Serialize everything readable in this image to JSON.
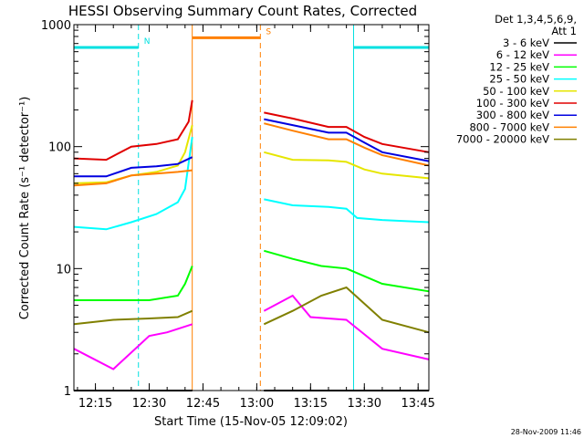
{
  "chart_data": {
    "type": "line",
    "title": "HESSI Observing Summary Count Rates, Corrected",
    "xlabel": "Start Time (15-Nov-05 12:09:02)",
    "ylabel": "Corrected Count Rate (s⁻¹ detector⁻¹)",
    "yscale": "log",
    "ylim": [
      1,
      1000
    ],
    "xlim": [
      "12:09",
      "13:48"
    ],
    "x_ticks": [
      "12:15",
      "12:30",
      "12:45",
      "13:00",
      "13:15",
      "13:30",
      "13:45"
    ],
    "y_ticks": [
      "1",
      "10",
      "100",
      "1000"
    ],
    "grid": false,
    "legend_placement": "right",
    "legend_header": [
      "Det 1,3,4,5,6,9,",
      "Att 1"
    ],
    "timestamp": "28-Nov-2009 11:46",
    "gaps": [
      [
        "12:42",
        "13:02"
      ]
    ],
    "annotations": [
      {
        "label": "N",
        "type": "night",
        "color": "#00e0e0",
        "periods": [
          [
            "12:09",
            "12:27"
          ],
          [
            "13:27",
            "13:48"
          ]
        ],
        "level": 650
      },
      {
        "label": "S",
        "type": "saa",
        "color": "#ff8000",
        "periods": [
          [
            "12:42",
            "13:01"
          ]
        ],
        "level": 780
      }
    ],
    "series": [
      {
        "name": "3 - 6 keV",
        "color": "#000000",
        "x": [
          "12:09",
          "12:18",
          "12:30",
          "12:42",
          "13:02",
          "13:15",
          "13:25",
          "13:35",
          "13:48"
        ],
        "values": [
          1,
          1,
          1,
          1,
          1,
          1,
          1,
          1,
          1
        ]
      },
      {
        "name": "6 - 12 keV",
        "color": "#ff00ff",
        "x": [
          "12:09",
          "12:20",
          "12:30",
          "12:35",
          "12:42",
          "13:02",
          "13:10",
          "13:15",
          "13:25",
          "13:35",
          "13:48"
        ],
        "values": [
          2.2,
          1.5,
          2.8,
          3.0,
          3.5,
          4.5,
          6.0,
          4.0,
          3.8,
          2.2,
          1.8
        ]
      },
      {
        "name": "12 - 25 keV",
        "color": "#00ff00",
        "x": [
          "12:09",
          "12:20",
          "12:30",
          "12:38",
          "12:40",
          "12:42",
          "13:02",
          "13:10",
          "13:18",
          "13:25",
          "13:35",
          "13:48"
        ],
        "values": [
          5.5,
          5.5,
          5.5,
          6.0,
          7.5,
          10.5,
          14.0,
          12.0,
          10.5,
          10.0,
          7.5,
          6.5
        ]
      },
      {
        "name": "25 - 50 keV",
        "color": "#00ffff",
        "x": [
          "12:09",
          "12:18",
          "12:25",
          "12:32",
          "12:38",
          "12:40",
          "12:42",
          "13:02",
          "13:10",
          "13:20",
          "13:25",
          "13:28",
          "13:35",
          "13:48"
        ],
        "values": [
          22,
          21,
          24,
          28,
          35,
          45,
          120,
          37,
          33,
          32,
          31,
          26,
          25,
          24
        ]
      },
      {
        "name": "50 - 100 keV",
        "color": "#e6e600",
        "x": [
          "12:09",
          "12:18",
          "12:25",
          "12:32",
          "12:38",
          "12:40",
          "12:42",
          "13:02",
          "13:10",
          "13:20",
          "13:25",
          "13:30",
          "13:35",
          "13:48"
        ],
        "values": [
          50,
          51,
          58,
          62,
          70,
          90,
          150,
          90,
          78,
          77,
          75,
          65,
          60,
          55
        ]
      },
      {
        "name": "100 - 300 keV",
        "color": "#e00000",
        "x": [
          "12:09",
          "12:18",
          "12:25",
          "12:32",
          "12:38",
          "12:41",
          "12:42",
          "13:02",
          "13:10",
          "13:20",
          "13:25",
          "13:30",
          "13:35",
          "13:48"
        ],
        "values": [
          80,
          78,
          100,
          105,
          115,
          160,
          240,
          190,
          170,
          145,
          145,
          120,
          105,
          90
        ]
      },
      {
        "name": "300 - 800 keV",
        "color": "#0000e0",
        "x": [
          "12:09",
          "12:18",
          "12:25",
          "12:32",
          "12:38",
          "12:42",
          "13:02",
          "13:10",
          "13:20",
          "13:25",
          "13:30",
          "13:35",
          "13:48"
        ],
        "values": [
          57,
          57,
          67,
          69,
          72,
          82,
          168,
          150,
          130,
          130,
          108,
          90,
          76
        ]
      },
      {
        "name": "800 - 7000 keV",
        "color": "#ff8000",
        "x": [
          "12:09",
          "12:18",
          "12:25",
          "12:32",
          "12:38",
          "12:42",
          "13:02",
          "13:10",
          "13:20",
          "13:25",
          "13:30",
          "13:35",
          "13:48"
        ],
        "values": [
          48,
          50,
          58,
          60,
          62,
          64,
          155,
          135,
          115,
          115,
          98,
          85,
          70
        ]
      },
      {
        "name": "7000 - 20000 keV",
        "color": "#808000",
        "x": [
          "12:09",
          "12:20",
          "12:30",
          "12:38",
          "12:42",
          "13:02",
          "13:10",
          "13:18",
          "13:25",
          "13:35",
          "13:48"
        ],
        "values": [
          3.5,
          3.8,
          3.9,
          4.0,
          4.5,
          3.5,
          4.5,
          6.0,
          7.0,
          3.8,
          3.0
        ]
      }
    ]
  }
}
